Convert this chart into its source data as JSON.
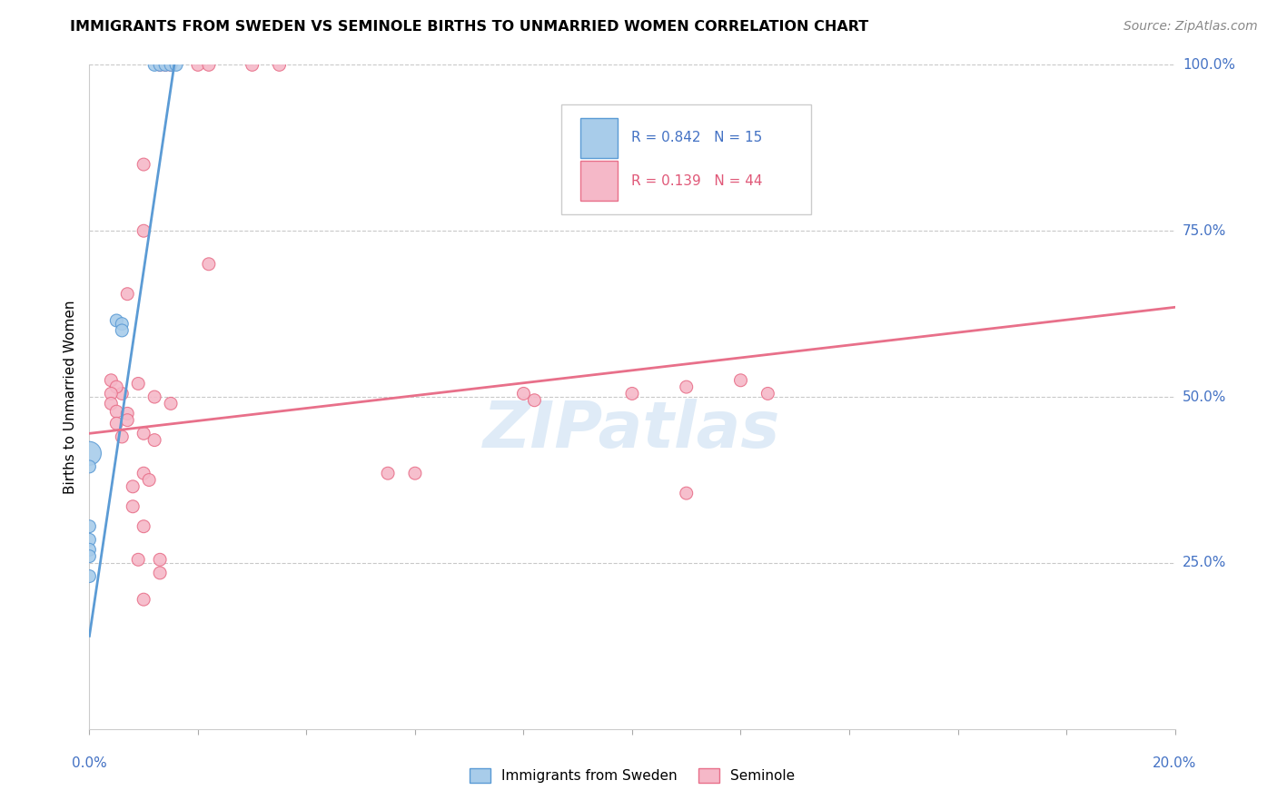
{
  "title": "IMMIGRANTS FROM SWEDEN VS SEMINOLE BIRTHS TO UNMARRIED WOMEN CORRELATION CHART",
  "source": "Source: ZipAtlas.com",
  "ylabel": "Births to Unmarried Women",
  "legend_blue_r": "R = 0.842",
  "legend_blue_n": "N = 15",
  "legend_pink_r": "R = 0.139",
  "legend_pink_n": "N = 44",
  "legend_label_blue": "Immigrants from Sweden",
  "legend_label_pink": "Seminole",
  "xlim": [
    0.0,
    0.2
  ],
  "ylim": [
    0.0,
    1.0
  ],
  "blue_color": "#A8CCEA",
  "pink_color": "#F5B8C8",
  "blue_line_color": "#5B9BD5",
  "pink_line_color": "#E8708A",
  "blue_points": [
    [
      0.0,
      0.415
    ],
    [
      0.0,
      0.395
    ],
    [
      0.0,
      0.305
    ],
    [
      0.0,
      0.285
    ],
    [
      0.0,
      0.27
    ],
    [
      0.0,
      0.26
    ],
    [
      0.005,
      0.615
    ],
    [
      0.006,
      0.61
    ],
    [
      0.006,
      0.6
    ],
    [
      0.012,
      1.0
    ],
    [
      0.013,
      1.0
    ],
    [
      0.014,
      1.0
    ],
    [
      0.015,
      1.0
    ],
    [
      0.016,
      1.0
    ],
    [
      0.0,
      0.23
    ]
  ],
  "blue_sizes": [
    350,
    100,
    100,
    100,
    100,
    100,
    100,
    100,
    100,
    100,
    100,
    100,
    100,
    100,
    100
  ],
  "pink_points": [
    [
      0.013,
      1.0
    ],
    [
      0.014,
      1.0
    ],
    [
      0.015,
      1.0
    ],
    [
      0.02,
      1.0
    ],
    [
      0.022,
      1.0
    ],
    [
      0.03,
      1.0
    ],
    [
      0.035,
      1.0
    ],
    [
      0.01,
      0.85
    ],
    [
      0.01,
      0.75
    ],
    [
      0.022,
      0.7
    ],
    [
      0.007,
      0.655
    ],
    [
      0.009,
      0.52
    ],
    [
      0.012,
      0.5
    ],
    [
      0.015,
      0.49
    ],
    [
      0.006,
      0.505
    ],
    [
      0.004,
      0.525
    ],
    [
      0.005,
      0.515
    ],
    [
      0.004,
      0.505
    ],
    [
      0.004,
      0.49
    ],
    [
      0.005,
      0.478
    ],
    [
      0.005,
      0.46
    ],
    [
      0.006,
      0.44
    ],
    [
      0.007,
      0.475
    ],
    [
      0.007,
      0.465
    ],
    [
      0.01,
      0.445
    ],
    [
      0.012,
      0.435
    ],
    [
      0.01,
      0.385
    ],
    [
      0.011,
      0.375
    ],
    [
      0.008,
      0.365
    ],
    [
      0.008,
      0.335
    ],
    [
      0.009,
      0.255
    ],
    [
      0.013,
      0.255
    ],
    [
      0.08,
      0.505
    ],
    [
      0.082,
      0.495
    ],
    [
      0.1,
      0.505
    ],
    [
      0.11,
      0.515
    ],
    [
      0.12,
      0.525
    ],
    [
      0.125,
      0.505
    ],
    [
      0.11,
      0.355
    ],
    [
      0.01,
      0.195
    ],
    [
      0.013,
      0.235
    ],
    [
      0.01,
      0.305
    ],
    [
      0.055,
      0.385
    ],
    [
      0.06,
      0.385
    ]
  ],
  "pink_sizes": [
    100,
    100,
    100,
    100,
    100,
    100,
    100,
    100,
    100,
    100,
    100,
    100,
    100,
    100,
    100,
    100,
    100,
    100,
    100,
    100,
    100,
    100,
    100,
    100,
    100,
    100,
    100,
    100,
    100,
    100,
    100,
    100,
    100,
    100,
    100,
    100,
    100,
    100,
    100,
    100,
    100,
    100,
    100,
    100
  ],
  "blue_line": [
    [
      0.0,
      0.14
    ],
    [
      0.016,
      1.02
    ]
  ],
  "pink_line": [
    [
      0.0,
      0.445
    ],
    [
      0.2,
      0.635
    ]
  ],
  "yticks": [
    0.25,
    0.5,
    0.75,
    1.0
  ],
  "ytick_labels": [
    "25.0%",
    "50.0%",
    "75.0%",
    "100.0%"
  ],
  "xtick_labels_show": [
    "0.0%",
    "20.0%"
  ]
}
